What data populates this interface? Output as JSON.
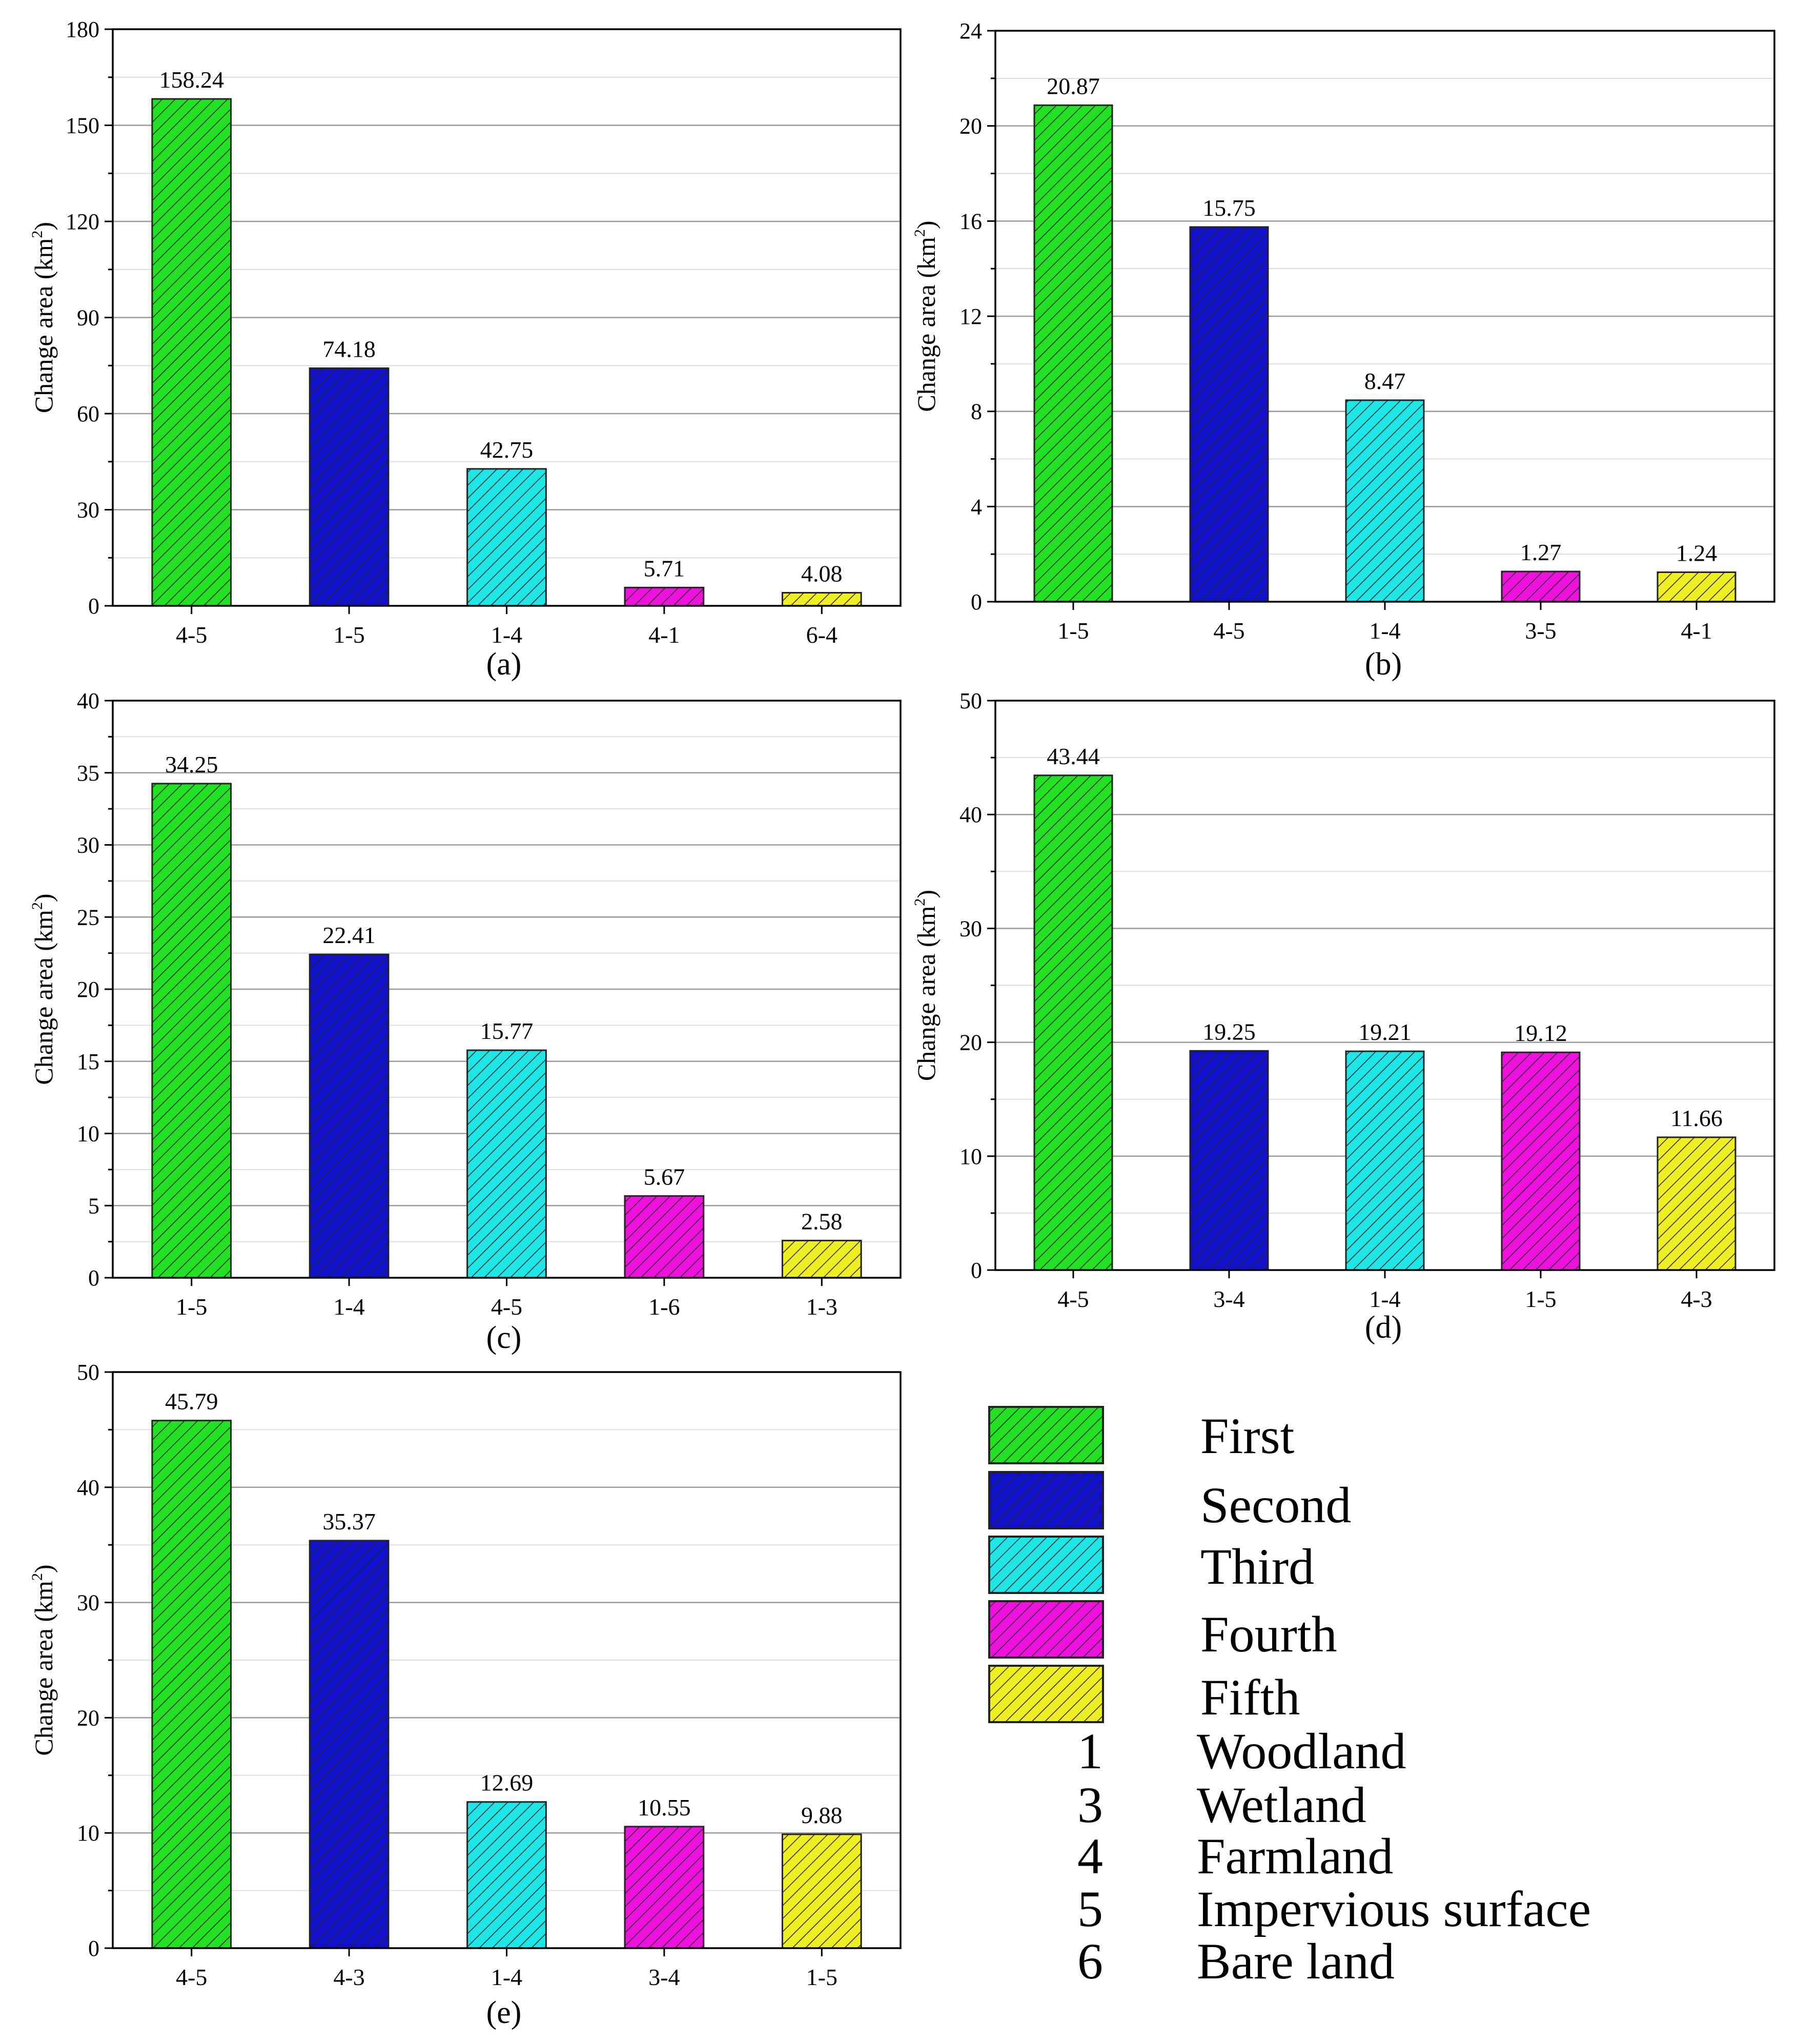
{
  "colors": {
    "first": "#22e022",
    "second": "#1111cc",
    "third": "#1ee6e6",
    "fourth": "#ee11dd",
    "fifth": "#eeee22",
    "hatch": "#222222",
    "grid": "#9a9a9a",
    "minor_grid": "#dddddd",
    "axis": "#000000"
  },
  "chart_data": [
    {
      "type": "bar",
      "panel_label": "(a)",
      "ylabel": "Change area (km",
      "ylabel_sup": "2",
      "ylabel_close": ")",
      "ylim": [
        0,
        180
      ],
      "yticks": [
        0,
        30,
        60,
        90,
        120,
        150,
        180
      ],
      "ytick_labels": [
        "0",
        "30",
        "60",
        "90",
        "120",
        "150",
        "180"
      ],
      "categories": [
        "4-5",
        "1-5",
        "1-4",
        "4-1",
        "6-4"
      ],
      "values": [
        158.24,
        74.18,
        42.75,
        5.71,
        4.08
      ],
      "value_labels": [
        "158.24",
        "74.18",
        "42.75",
        "5.71",
        "4.08"
      ],
      "ranks": [
        "first",
        "second",
        "third",
        "fourth",
        "fifth"
      ]
    },
    {
      "type": "bar",
      "panel_label": "(b)",
      "ylabel": "Change area (km",
      "ylabel_sup": "2",
      "ylabel_close": ")",
      "ylim": [
        0,
        24
      ],
      "yticks": [
        0,
        4,
        8,
        12,
        16,
        20,
        24
      ],
      "ytick_labels": [
        "0",
        "4",
        "8",
        "12",
        "16",
        "20",
        "24"
      ],
      "categories": [
        "1-5",
        "4-5",
        "1-4",
        "3-5",
        "4-1"
      ],
      "values": [
        20.87,
        15.75,
        8.47,
        1.27,
        1.24
      ],
      "value_labels": [
        "20.87",
        "15.75",
        "8.47",
        "1.27",
        "1.24"
      ],
      "ranks": [
        "first",
        "second",
        "third",
        "fourth",
        "fifth"
      ]
    },
    {
      "type": "bar",
      "panel_label": "(c)",
      "ylabel": "Change area (km",
      "ylabel_sup": "2",
      "ylabel_close": ")",
      "ylim": [
        0,
        40
      ],
      "yticks": [
        0,
        5,
        10,
        15,
        20,
        25,
        30,
        35,
        40
      ],
      "ytick_labels": [
        "0",
        "5",
        "10",
        "15",
        "20",
        "25",
        "30",
        "35",
        "40"
      ],
      "categories": [
        "1-5",
        "1-4",
        "4-5",
        "1-6",
        "1-3"
      ],
      "values": [
        34.25,
        22.41,
        15.77,
        5.67,
        2.58
      ],
      "value_labels": [
        "34.25",
        "22.41",
        "15.77",
        "5.67",
        "2.58"
      ],
      "ranks": [
        "first",
        "second",
        "third",
        "fourth",
        "fifth"
      ]
    },
    {
      "type": "bar",
      "panel_label": "(d)",
      "ylabel": "Change area (km",
      "ylabel_sup": "2",
      "ylabel_close": ")",
      "ylim": [
        0,
        50
      ],
      "yticks": [
        0,
        10,
        20,
        30,
        40,
        50
      ],
      "ytick_labels": [
        "0",
        "10",
        "20",
        "30",
        "40",
        "50"
      ],
      "categories": [
        "4-5",
        "3-4",
        "1-4",
        "1-5",
        "4-3"
      ],
      "values": [
        43.44,
        19.25,
        19.21,
        19.12,
        11.66
      ],
      "value_labels": [
        "43.44",
        "19.25",
        "19.21",
        "19.12",
        "11.66"
      ],
      "ranks": [
        "first",
        "second",
        "third",
        "fourth",
        "fifth"
      ]
    },
    {
      "type": "bar",
      "panel_label": "(e)",
      "ylabel": "Change area (km",
      "ylabel_sup": "2",
      "ylabel_close": ")",
      "ylim": [
        0,
        50
      ],
      "yticks": [
        0,
        10,
        20,
        30,
        40,
        50
      ],
      "ytick_labels": [
        "0",
        "10",
        "20",
        "30",
        "40",
        "50"
      ],
      "categories": [
        "4-5",
        "4-3",
        "1-4",
        "3-4",
        "1-5"
      ],
      "values": [
        45.79,
        35.37,
        12.69,
        10.55,
        9.88
      ],
      "value_labels": [
        "45.79",
        "35.37",
        "12.69",
        "10.55",
        "9.88"
      ],
      "ranks": [
        "first",
        "second",
        "third",
        "fourth",
        "fifth"
      ]
    }
  ],
  "legend": {
    "swatches": [
      {
        "rank": "first",
        "label": "First"
      },
      {
        "rank": "second",
        "label": "Second"
      },
      {
        "rank": "third",
        "label": "Third"
      },
      {
        "rank": "fourth",
        "label": "Fourth"
      },
      {
        "rank": "fifth",
        "label": "Fifth"
      }
    ],
    "codes": [
      {
        "code": "1",
        "label": "Woodland"
      },
      {
        "code": "3",
        "label": "Wetland"
      },
      {
        "code": "4",
        "label": "Farmland"
      },
      {
        "code": "5",
        "label": "Impervious surface"
      },
      {
        "code": "6",
        "label": "Bare land"
      }
    ]
  }
}
